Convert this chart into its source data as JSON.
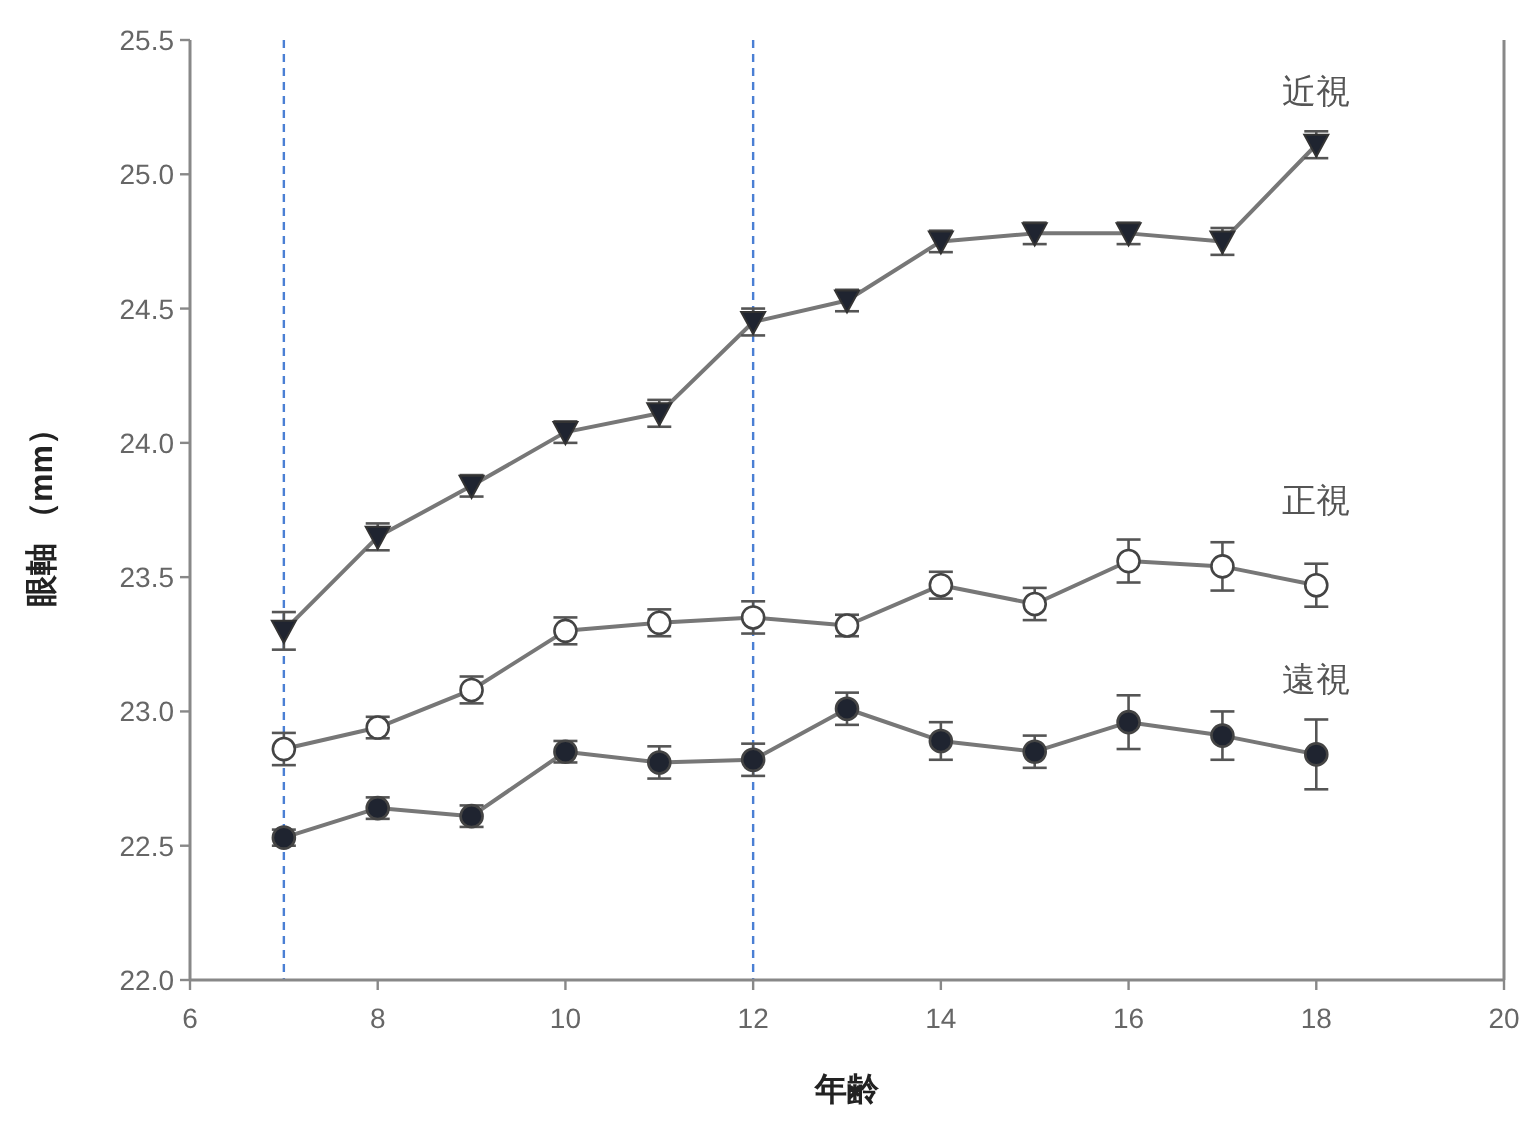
{
  "chart_data": {
    "type": "line",
    "xlabel": "年齢",
    "ylabel": "眼軸 （mm）",
    "x": [
      7,
      8,
      9,
      10,
      11,
      12,
      13,
      14,
      15,
      16,
      17,
      18
    ],
    "xlim": [
      6,
      20
    ],
    "xticks": [
      6,
      8,
      10,
      12,
      14,
      16,
      18,
      20
    ],
    "ylim": [
      22.0,
      25.5
    ],
    "yticks": [
      {
        "value": 22.0,
        "label": "22.0"
      },
      {
        "value": 22.5,
        "label": "22.5"
      },
      {
        "value": 23.0,
        "label": "23.0"
      },
      {
        "value": 23.5,
        "label": "23.5"
      },
      {
        "value": 24.0,
        "label": "24.0"
      },
      {
        "value": 24.5,
        "label": "24.5"
      },
      {
        "value": 25.0,
        "label": "25.0"
      },
      {
        "value": 25.5,
        "label": "25.5"
      }
    ],
    "grid": false,
    "line_style": "solid",
    "series": [
      {
        "name": "近視",
        "color": "#1f2430",
        "marker": "triangle",
        "values": [
          23.3,
          23.65,
          23.84,
          24.04,
          24.11,
          24.45,
          24.53,
          24.75,
          24.78,
          24.78,
          24.75,
          25.11
        ],
        "errors": [
          0.07,
          0.05,
          0.04,
          0.04,
          0.05,
          0.05,
          0.04,
          0.04,
          0.04,
          0.04,
          0.05,
          0.05
        ]
      },
      {
        "name": "正視",
        "color": "#ffffff",
        "marker": "circle",
        "values": [
          22.86,
          22.94,
          23.08,
          23.3,
          23.33,
          23.35,
          23.32,
          23.47,
          23.4,
          23.56,
          23.54,
          23.47
        ],
        "errors": [
          0.06,
          0.04,
          0.05,
          0.05,
          0.05,
          0.06,
          0.04,
          0.05,
          0.06,
          0.08,
          0.09,
          0.08
        ]
      },
      {
        "name": "遠視",
        "color": "#1f2430",
        "marker": "circle",
        "values": [
          22.53,
          22.64,
          22.61,
          22.85,
          22.81,
          22.82,
          23.01,
          22.89,
          22.85,
          22.96,
          22.91,
          22.84
        ],
        "errors": [
          0.03,
          0.04,
          0.04,
          0.04,
          0.06,
          0.06,
          0.06,
          0.07,
          0.06,
          0.1,
          0.09,
          0.13
        ]
      }
    ],
    "ref_lines": [
      {
        "axis": "x",
        "value": 7,
        "color": "#4a7fd4",
        "line_style": "dashed"
      },
      {
        "axis": "x",
        "value": 12,
        "color": "#4a7fd4",
        "line_style": "dashed"
      }
    ]
  }
}
